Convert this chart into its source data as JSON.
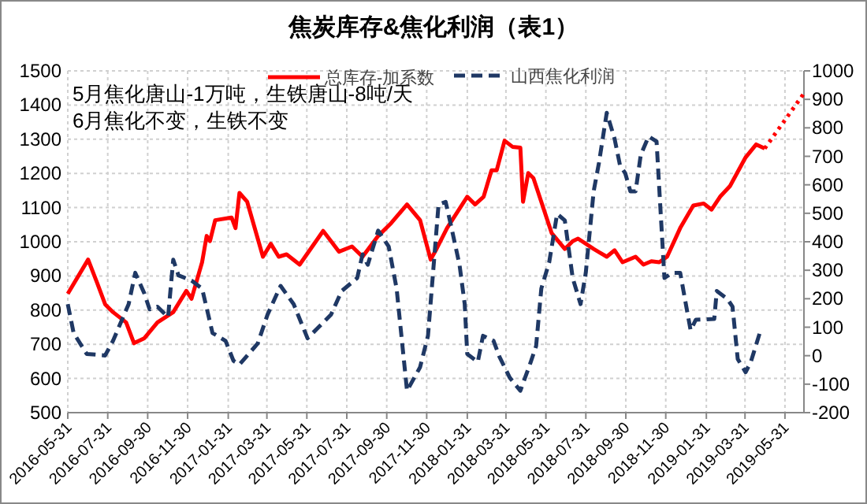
{
  "chart_data": {
    "type": "line",
    "title": "焦炭库存&焦化利润（表1）",
    "annotations": [
      "5月焦化唐山-1万吨，生铁唐山-8吨/天",
      "6月焦化不变，生铁不变"
    ],
    "xlim": [
      "2016-05-31",
      "2019-06-29"
    ],
    "xticks": [
      "2016-05-31",
      "2016-07-31",
      "2016-09-30",
      "2016-11-30",
      "2017-01-31",
      "2017-03-31",
      "2017-05-31",
      "2017-07-31",
      "2017-09-30",
      "2017-11-30",
      "2018-01-31",
      "2018-03-31",
      "2018-05-31",
      "2018-07-31",
      "2018-09-30",
      "2018-11-30",
      "2019-01-31",
      "2019-03-31",
      "2019-05-31"
    ],
    "ylim": [
      500,
      1500
    ],
    "yticks": [
      500,
      600,
      700,
      800,
      900,
      1000,
      1100,
      1200,
      1300,
      1400,
      1500
    ],
    "y2lim": [
      -200,
      1000
    ],
    "y2ticks": [
      -200,
      -100,
      0,
      100,
      200,
      300,
      400,
      500,
      600,
      700,
      800,
      900,
      1000
    ],
    "grid": true,
    "legend": "top",
    "marker": "none",
    "series": [
      {
        "name": "总库存-加系数",
        "color": "#ff0000",
        "line_style": "solid",
        "x": [
          "2016-05-31",
          "2016-07-01",
          "2016-07-15",
          "2016-07-27",
          "2016-08-08",
          "2016-08-28",
          "2016-09-09",
          "2016-09-25",
          "2016-10-15",
          "2016-11-08",
          "2016-11-28",
          "2016-12-06",
          "2016-12-22",
          "2016-12-29",
          "2017-01-03",
          "2017-01-11",
          "2017-02-05",
          "2017-02-11",
          "2017-02-17",
          "2017-03-01",
          "2017-03-25",
          "2017-04-06",
          "2017-04-18",
          "2017-04-30",
          "2017-05-20",
          "2017-06-25",
          "2017-07-07",
          "2017-07-19",
          "2017-08-08",
          "2017-08-24",
          "2017-09-17",
          "2017-10-07",
          "2017-10-31",
          "2017-11-20",
          "2017-12-06",
          "2017-12-15",
          "2017-12-31",
          "2018-01-31",
          "2018-02-12",
          "2018-02-25",
          "2018-03-09",
          "2018-03-17",
          "2018-03-29",
          "2018-04-10",
          "2018-04-22",
          "2018-04-26",
          "2018-05-04",
          "2018-05-12",
          "2018-06-09",
          "2018-06-29",
          "2018-07-11",
          "2018-07-19",
          "2018-08-12",
          "2018-09-01",
          "2018-09-13",
          "2018-09-25",
          "2018-10-15",
          "2018-10-27",
          "2018-11-08",
          "2018-11-20",
          "2018-12-02",
          "2018-12-22",
          "2019-01-11",
          "2019-01-27",
          "2019-02-08",
          "2019-02-21",
          "2019-03-08",
          "2019-04-01",
          "2019-04-17",
          "2019-04-30"
        ],
        "values": [
          848,
          948,
          879,
          817,
          794,
          764,
          703,
          718,
          764,
          794,
          856,
          833,
          940,
          1017,
          1002,
          1063,
          1071,
          1040,
          1143,
          1117,
          956,
          994,
          956,
          963,
          933,
          1032,
          1002,
          971,
          986,
          956,
          1017,
          1055,
          1109,
          1063,
          948,
          979,
          1040,
          1132,
          1109,
          1132,
          1209,
          1209,
          1296,
          1278,
          1275,
          1117,
          1201,
          1186,
          1025,
          979,
          1002,
          1009,
          979,
          956,
          975,
          940,
          956,
          933,
          943,
          940,
          956,
          1040,
          1106,
          1112,
          1094,
          1132,
          1163,
          1247,
          1285,
          1273
        ]
      },
      {
        "color": "#ff0000",
        "line_style": "dotted",
        "x": [
          "2019-04-30",
          "2019-06-29"
        ],
        "values": [
          1273,
          1434
        ]
      },
      {
        "name": "山西焦化利润",
        "color": "#1f3864",
        "line_style": "dashed",
        "axis": "y2",
        "x": [
          "2016-05-31",
          "2016-06-09",
          "2016-06-29",
          "2016-07-27",
          "2016-08-08",
          "2016-09-01",
          "2016-09-11",
          "2016-09-25",
          "2016-10-03",
          "2016-10-15",
          "2016-10-31",
          "2016-11-08",
          "2016-11-16",
          "2016-12-06",
          "2016-12-22",
          "2017-01-07",
          "2017-01-27",
          "2017-02-08",
          "2017-02-17",
          "2017-03-17",
          "2017-04-01",
          "2017-04-21",
          "2017-05-11",
          "2017-06-01",
          "2017-06-17",
          "2017-07-07",
          "2017-07-23",
          "2017-08-16",
          "2017-08-24",
          "2017-09-01",
          "2017-09-17",
          "2017-10-03",
          "2017-10-15",
          "2017-10-31",
          "2017-11-20",
          "2017-12-02",
          "2017-12-18",
          "2017-12-29",
          "2018-01-06",
          "2018-01-19",
          "2018-01-27",
          "2018-01-31",
          "2018-02-16",
          "2018-02-24",
          "2018-03-12",
          "2018-03-21",
          "2018-04-06",
          "2018-04-22",
          "2018-05-08",
          "2018-05-16",
          "2018-05-24",
          "2018-06-05",
          "2018-06-17",
          "2018-06-29",
          "2018-07-11",
          "2018-07-23",
          "2018-07-31",
          "2018-08-12",
          "2018-08-20",
          "2018-09-01",
          "2018-09-13",
          "2018-09-21",
          "2018-09-29",
          "2018-10-07",
          "2018-10-15",
          "2018-10-23",
          "2018-11-04",
          "2018-11-16",
          "2018-11-28",
          "2018-12-10",
          "2018-12-22",
          "2018-12-30",
          "2019-01-07",
          "2019-01-15",
          "2019-02-12",
          "2019-02-16",
          "2019-03-04",
          "2019-03-12",
          "2019-03-20",
          "2019-04-01",
          "2019-04-09",
          "2019-04-25"
        ],
        "values": [
          181,
          80,
          6,
          1,
          52,
          181,
          291,
          218,
          163,
          172,
          135,
          337,
          282,
          264,
          236,
          80,
          52,
          -18,
          -31,
          43,
          144,
          245,
          181,
          61,
          98,
          144,
          227,
          273,
          356,
          319,
          439,
          383,
          236,
          -123,
          -40,
          70,
          531,
          540,
          457,
          319,
          181,
          6,
          -22,
          70,
          52,
          -3,
          -77,
          -123,
          -22,
          34,
          236,
          328,
          498,
          475,
          273,
          181,
          291,
          577,
          678,
          853,
          761,
          669,
          641,
          577,
          577,
          706,
          770,
          752,
          273,
          291,
          291,
          190,
          89,
          126,
          129,
          227,
          199,
          172,
          -12,
          -58,
          -22,
          98
        ]
      }
    ]
  }
}
